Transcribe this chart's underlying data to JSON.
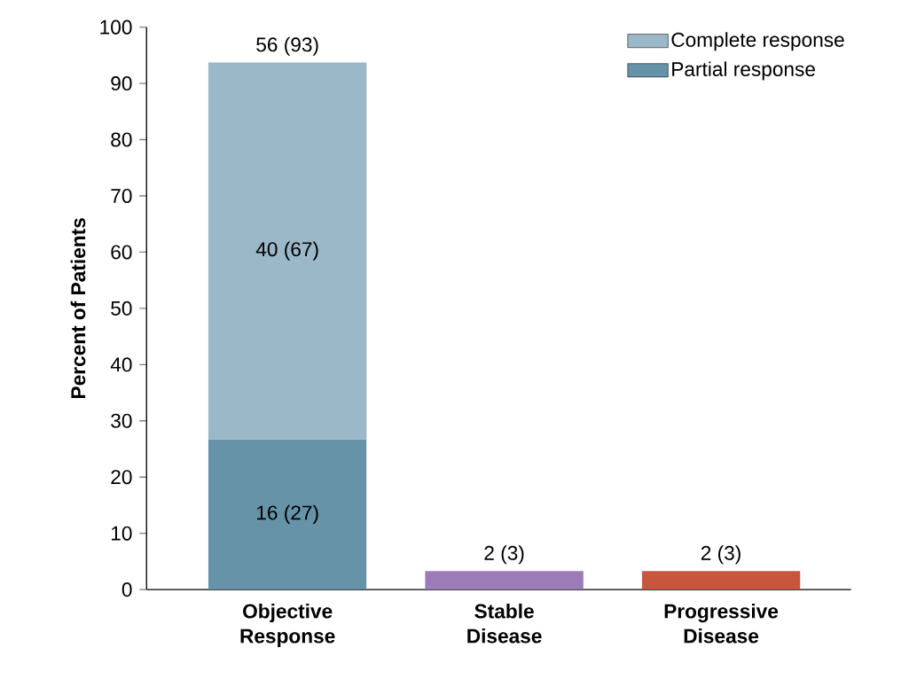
{
  "chart_data": {
    "type": "bar",
    "stacked": true,
    "ylabel": "Percent of Patients",
    "categories": [
      "Objective Response",
      "Stable Disease",
      "Progressive Disease"
    ],
    "series": [
      {
        "name": "Partial response",
        "color": "#6793a8",
        "values": [
          26.7,
          null,
          null
        ],
        "value_labels": [
          "16 (27)",
          null,
          null
        ]
      },
      {
        "name": "Complete response",
        "color": "#9ab8c8",
        "values": [
          67.0,
          null,
          null
        ],
        "value_labels": [
          "40 (67)",
          null,
          null
        ]
      },
      {
        "colors": [
          null,
          "#9b7bb8",
          "#c8553d"
        ],
        "values": [
          null,
          3.3,
          3.3
        ],
        "value_labels": [
          null,
          "2 (3)",
          "2 (3)"
        ]
      }
    ],
    "totals": [
      "56 (93)",
      null,
      null
    ],
    "ylim": [
      0,
      100
    ],
    "yticks": [
      0,
      10,
      20,
      30,
      40,
      50,
      60,
      70,
      80,
      90,
      100
    ],
    "grid": false,
    "legend": "top right"
  }
}
